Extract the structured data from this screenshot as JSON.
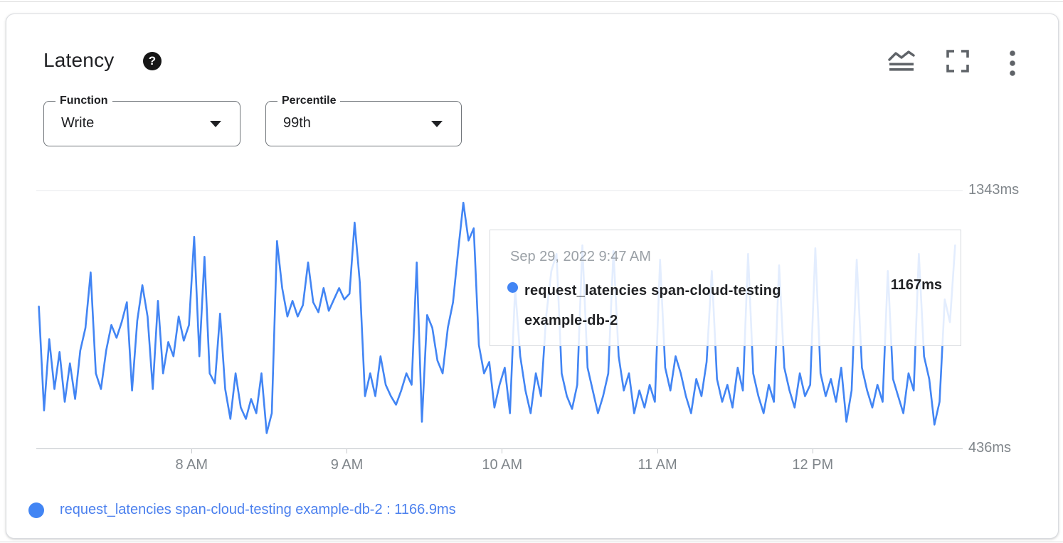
{
  "header": {
    "title": "Latency",
    "help_glyph": "?"
  },
  "toolbar": {
    "icons": {
      "legend_toggle": "chart-wave-lines-icon",
      "fullscreen": "corner-brackets-icon",
      "more_options": "kebab-vertical-dots-icon"
    }
  },
  "controls": {
    "function": {
      "label": "Function",
      "value": "Write"
    },
    "percentile": {
      "label": "Percentile",
      "value": "99th"
    }
  },
  "tooltip": {
    "timestamp": "Sep 29, 2022 9:47 AM",
    "series_name": "request_latencies span-cloud-testing example-db-2",
    "value": "1167ms"
  },
  "legend": {
    "text": "request_latencies span-cloud-testing example-db-2 : 1166.9ms"
  },
  "colors": {
    "line_blue": "#4285f4",
    "legend_text_blue": "#4b80ee",
    "axis_text_gray": "#80868b",
    "icon_gray": "#5f6368"
  },
  "chart_data": {
    "type": "line",
    "title": "Latency",
    "unit": "ms",
    "ylim": [
      436,
      1343
    ],
    "y_axis_labels": [
      "1343ms",
      "436ms"
    ],
    "x_start_offset_min": 1,
    "interval_min": 2,
    "x_total_minutes": 356,
    "x_ticks": [
      {
        "label": "8 AM",
        "minutes": 60
      },
      {
        "label": "9 AM",
        "minutes": 120
      },
      {
        "label": "10 AM",
        "minutes": 180
      },
      {
        "label": "11 AM",
        "minutes": 240
      },
      {
        "label": "12 PM",
        "minutes": 300
      }
    ],
    "grid": "top-and-bottom-only",
    "legend_position": "bottom-left",
    "hovered_point": {
      "time": "9:47 AM",
      "value_ms": 1166.9
    },
    "series": [
      {
        "name": "request_latencies span-cloud-testing example-db-2",
        "color": "#4285f4",
        "start_time": "7:01 AM",
        "values": [
          935,
          570,
          820,
          645,
          775,
          600,
          735,
          610,
          780,
          860,
          1055,
          700,
          645,
          780,
          870,
          825,
          880,
          950,
          640,
          885,
          1010,
          900,
          645,
          955,
          700,
          810,
          760,
          900,
          815,
          870,
          1180,
          760,
          1110,
          700,
          665,
          910,
          645,
          540,
          700,
          580,
          540,
          610,
          560,
          700,
          490,
          560,
          1165,
          1000,
          900,
          955,
          900,
          940,
          1090,
          950,
          915,
          1000,
          920,
          960,
          1000,
          960,
          980,
          1230,
          1020,
          620,
          700,
          620,
          760,
          660,
          620,
          590,
          640,
          700,
          660,
          1090,
          530,
          905,
          860,
          745,
          700,
          860,
          950,
          1130,
          1300,
          1167,
          1210,
          800,
          700,
          740,
          580,
          660,
          720,
          560,
          1000,
          760,
          640,
          560,
          700,
          620,
          900,
          1060,
          1120,
          700,
          620,
          575,
          660,
          1150,
          720,
          640,
          560,
          620,
          700,
          1130,
          760,
          640,
          700,
          560,
          640,
          580,
          660,
          600,
          1100,
          720,
          640,
          760,
          700,
          620,
          560,
          680,
          620,
          740,
          1060,
          680,
          600,
          660,
          580,
          720,
          640,
          1120,
          700,
          620,
          560,
          660,
          600,
          1080,
          720,
          640,
          580,
          700,
          620,
          660,
          1140,
          700,
          620,
          680,
          600,
          720,
          530,
          640,
          1100,
          720,
          640,
          580,
          660,
          600,
          1060,
          680,
          620,
          560,
          700,
          640,
          1120,
          760,
          680,
          520,
          600,
          960,
          880,
          1150
        ]
      }
    ]
  }
}
